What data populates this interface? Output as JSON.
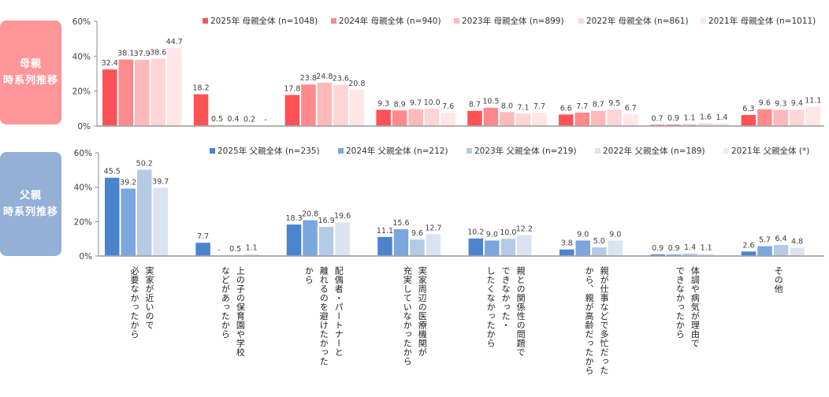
{
  "badges": {
    "mother": {
      "line1": "母親",
      "line2": "時系列推移"
    },
    "father": {
      "line1": "父親",
      "line2": "時系列推移"
    }
  },
  "chart_data": [
    {
      "type": "bar",
      "title": "母親 時系列推移",
      "xlabel": "",
      "ylabel": "",
      "ylim": [
        0,
        60
      ],
      "ytick_values": [
        0,
        20,
        40,
        60
      ],
      "yticks": [
        "0%",
        "20%",
        "40%",
        "60%"
      ],
      "grid": false,
      "legend_position": "top-right",
      "categories": [
        "実家が近いので\n必要なかったから",
        "上の子の保育園や学校\nなどがあったから",
        "配偶者・パートナーと\n離れるのを避けたかった\nから",
        "実家周辺の医療機関が\n充実していなかったから",
        "親との関係性の問題で\nできなかった・\nしたくなかったから",
        "親が仕事などで多忙だった\nから、親が高齢だったから",
        "体調や病気が理由で\nできなかったから",
        "その他"
      ],
      "series": [
        {
          "name": "2025年 母親全体 (n=1048)",
          "color": "#ff5257",
          "values": [
            32.4,
            18.2,
            17.8,
            9.3,
            8.7,
            6.6,
            0.7,
            6.3
          ],
          "labels": [
            "32.4",
            "18.2",
            "17.8",
            "9.3",
            "8.7",
            "6.6",
            "0.7",
            "6.3"
          ]
        },
        {
          "name": "2024年 母親全体 (n=940)",
          "color": "#ff8a8c",
          "values": [
            38.1,
            0.5,
            23.8,
            8.9,
            10.5,
            7.7,
            0.9,
            9.6
          ],
          "labels": [
            "38.1",
            "0.5",
            "23.8",
            "8.9",
            "10.5",
            "7.7",
            "0.9",
            "9.6"
          ]
        },
        {
          "name": "2023年 母親全体 (n=899)",
          "color": "#ffb9ba",
          "values": [
            37.9,
            0.4,
            24.8,
            9.7,
            8.0,
            8.7,
            1.1,
            9.3
          ],
          "labels": [
            "37.9",
            "0.4",
            "24.8",
            "9.7",
            "8.0",
            "8.7",
            "1.1",
            "9.3"
          ]
        },
        {
          "name": "2022年 母親全体 (n=861)",
          "color": "#ffd5d6",
          "values": [
            38.6,
            0.2,
            23.6,
            10.0,
            7.1,
            9.5,
            1.6,
            9.4
          ],
          "labels": [
            "38.6",
            "0.2",
            "23.6",
            "10.0",
            "7.1",
            "9.5",
            "1.6",
            "9.4"
          ]
        },
        {
          "name": "2021年 母親全体 (n=1011)",
          "color": "#ffe6e7",
          "values": [
            44.7,
            null,
            20.8,
            7.6,
            7.7,
            6.7,
            1.4,
            11.1
          ],
          "labels": [
            "44.7",
            "-",
            "20.8",
            "7.6",
            "7.7",
            "6.7",
            "1.4",
            "11.1"
          ]
        }
      ]
    },
    {
      "type": "bar",
      "title": "父親 時系列推移",
      "xlabel": "",
      "ylabel": "",
      "ylim": [
        0,
        60
      ],
      "ytick_values": [
        0,
        20,
        40,
        60
      ],
      "yticks": [
        "0%",
        "20%",
        "40%",
        "60%"
      ],
      "grid": false,
      "legend_position": "top-right",
      "categories": [
        "実家が近いので\n必要なかったから",
        "上の子の保育園や学校\nなどがあったから",
        "配偶者・パートナーと\n離れるのを避けたかった\nから",
        "実家周辺の医療機関が\n充実していなかったから",
        "親との関係性の問題で\nできなかった・\nしたくなかったから",
        "親が仕事などで多忙だった\nから、親が高齢だったから",
        "体調や病気が理由で\nできなかったから",
        "その他"
      ],
      "series": [
        {
          "name": "2025年 父親全体 (n=235)",
          "color": "#4a84cf",
          "values": [
            45.5,
            7.7,
            18.3,
            11.1,
            10.2,
            3.8,
            0.9,
            2.6
          ],
          "labels": [
            "45.5",
            "7.7",
            "18.3",
            "11.1",
            "10.2",
            "3.8",
            "0.9",
            "2.6"
          ]
        },
        {
          "name": "2024年 父親全体 (n=212)",
          "color": "#7ba6de",
          "values": [
            39.2,
            null,
            20.8,
            15.6,
            9.0,
            9.0,
            0.9,
            5.7
          ],
          "labels": [
            "39.2",
            "-",
            "20.8",
            "15.6",
            "9.0",
            "9.0",
            "0.9",
            "5.7"
          ]
        },
        {
          "name": "2023年 父親全体 (n=219)",
          "color": "#b5cae5",
          "values": [
            50.2,
            0.5,
            16.9,
            9.6,
            10.0,
            5.0,
            1.4,
            6.4
          ],
          "labels": [
            "50.2",
            "0.5",
            "16.9",
            "9.6",
            "10.0",
            "5.0",
            "1.4",
            "6.4"
          ]
        },
        {
          "name": "2022年 父親全体 (n=189)",
          "color": "#dae4f0",
          "values": [
            39.7,
            1.1,
            19.6,
            12.7,
            12.2,
            9.0,
            1.1,
            4.8
          ],
          "labels": [
            "39.7",
            "1.1",
            "19.6",
            "12.7",
            "12.2",
            "9.0",
            "1.1",
            "4.8"
          ]
        },
        {
          "name": "2021年 父親全体 (*)",
          "color": "#e9eef4",
          "values": [],
          "labels": []
        }
      ]
    }
  ]
}
